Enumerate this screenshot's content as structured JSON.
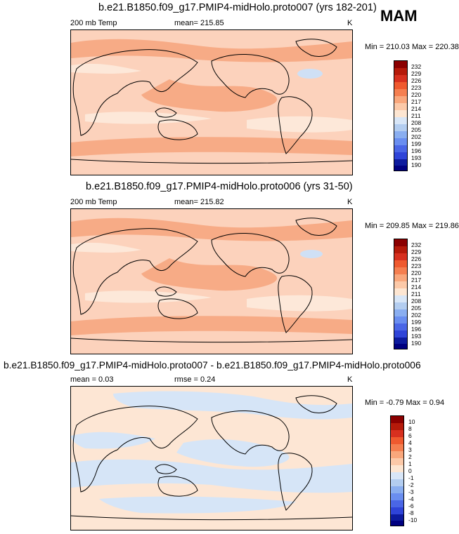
{
  "season": "MAM",
  "chart_data": [
    {
      "type": "heatmap",
      "title": "b.e21.B1850.f09_g17.PMIP4-midHolo.proto007 (yrs 182-201)",
      "variable": "200 mb Temp",
      "mean": "mean= 215.85",
      "units": "K",
      "minmax": "Min = 210.03 Max = 220.38",
      "colorbar": [
        "232",
        "229",
        "226",
        "223",
        "220",
        "217",
        "214",
        "211",
        "208",
        "205",
        "202",
        "199",
        "196",
        "193",
        "190"
      ]
    },
    {
      "type": "heatmap",
      "title": "b.e21.B1850.f09_g17.PMIP4-midHolo.proto006 (yrs 31-50)",
      "variable": "200 mb Temp",
      "mean": "mean= 215.82",
      "units": "K",
      "minmax": "Min = 209.85 Max = 219.86",
      "colorbar": [
        "232",
        "229",
        "226",
        "223",
        "220",
        "217",
        "214",
        "211",
        "208",
        "205",
        "202",
        "199",
        "196",
        "193",
        "190"
      ]
    },
    {
      "type": "heatmap",
      "title": "b.e21.B1850.f09_g17.PMIP4-midHolo.proto007 - b.e21.B1850.f09_g17.PMIP4-midHolo.proto006",
      "mean": "mean =   0.03",
      "rmse": "rmse =   0.24",
      "units": "K",
      "minmax": "Min =  -0.79 Max =   0.94",
      "colorbar": [
        "10",
        "8",
        "6",
        "4",
        "3",
        "2",
        "1",
        "0",
        "-1",
        "-2",
        "-3",
        "-4",
        "-6",
        "-8",
        "-10"
      ]
    }
  ],
  "colors": {
    "scale": [
      "#8b0000",
      "#b51a0a",
      "#d7301f",
      "#ef5a2f",
      "#f57f50",
      "#f9a77c",
      "#fcc9a8",
      "#fde6d2",
      "#d8e6f7",
      "#b3cdf0",
      "#8aaef0",
      "#6a8ef0",
      "#4a66e6",
      "#2f44d8",
      "#0d1b9e",
      "#000080"
    ],
    "ocean": "#fcd2bc",
    "band_warm": "#f7ab86",
    "band_cool": "#fde8d9",
    "blue_patch": "#cfe0f5",
    "diff_bg": "#fde6d4",
    "diff_blue": "#d6e5f7"
  }
}
